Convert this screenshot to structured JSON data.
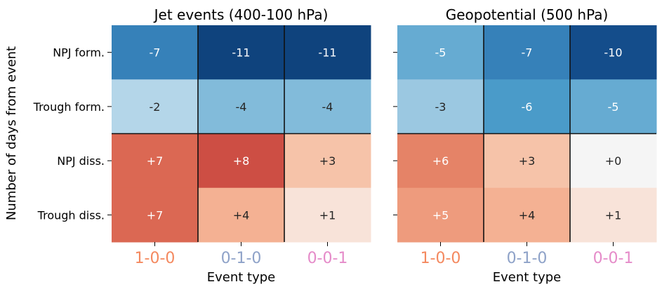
{
  "ylabel": "Number of days from event",
  "row_labels": [
    "NPJ form.",
    "Trough form.",
    "NPJ diss.",
    "Trough diss."
  ],
  "chart_data": [
    {
      "type": "heatmap",
      "title": "Jet events (400-100 hPa)",
      "xlabel": "Event type",
      "ylabel": "Number of days from event",
      "categories": [
        "1-0-0",
        "0-1-0",
        "0-0-1"
      ],
      "category_colors": [
        "#f4895f",
        "#8ea2c8",
        "#e58bc9"
      ],
      "rows": [
        "NPJ form.",
        "Trough form.",
        "NPJ diss.",
        "Trough diss."
      ],
      "values": [
        [
          -7,
          -11,
          -11
        ],
        [
          -2,
          -4,
          -4
        ],
        [
          7,
          8,
          3
        ],
        [
          7,
          4,
          1
        ]
      ],
      "labels": [
        [
          "-7",
          "-11",
          "-11"
        ],
        [
          "-2",
          "-4",
          "-4"
        ],
        [
          "+7",
          "+8",
          "+3"
        ],
        [
          "+7",
          "+4",
          "+1"
        ]
      ],
      "colorscale": "RdBu_r",
      "vlim": [
        -11,
        11
      ]
    },
    {
      "type": "heatmap",
      "title": "Geopotential (500 hPa)",
      "xlabel": "Event type",
      "categories": [
        "1-0-0",
        "0-1-0",
        "0-0-1"
      ],
      "category_colors": [
        "#f4895f",
        "#8ea2c8",
        "#e58bc9"
      ],
      "rows": [
        "NPJ form.",
        "Trough form.",
        "NPJ diss.",
        "Trough diss."
      ],
      "values": [
        [
          -5,
          -7,
          -10
        ],
        [
          -3,
          -6,
          -5
        ],
        [
          6,
          3,
          0
        ],
        [
          5,
          4,
          1
        ]
      ],
      "labels": [
        [
          "-5",
          "-7",
          "-10"
        ],
        [
          "-3",
          "-6",
          "-5"
        ],
        [
          "+6",
          "+3",
          "+0"
        ],
        [
          "+5",
          "+4",
          "+1"
        ]
      ],
      "colorscale": "RdBu_r",
      "vlim": [
        -11,
        11
      ]
    }
  ]
}
